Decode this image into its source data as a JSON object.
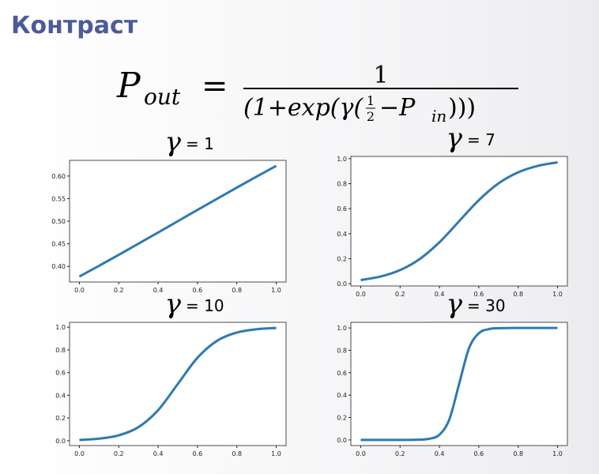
{
  "title": "Контраст",
  "formula": {
    "lhs": "P",
    "lhs_sub": "out",
    "equals": "=",
    "numerator": "1",
    "den_start": "(1+exp(γ(",
    "half_num": "1",
    "half_den": "2",
    "den_minus": "−P",
    "den_sub": "in",
    "den_end": ")))"
  },
  "chart_data": [
    {
      "type": "line",
      "title_symbol": "γ",
      "title": "= 1",
      "color": "#2e7ab2",
      "x": [
        0,
        0.1,
        0.2,
        0.3,
        0.4,
        0.5,
        0.6,
        0.7,
        0.8,
        0.9,
        1
      ],
      "values": [
        0.3775,
        0.4013,
        0.4256,
        0.4502,
        0.475,
        0.5,
        0.525,
        0.5498,
        0.5744,
        0.5987,
        0.6225
      ],
      "xlim": [
        -0.05,
        1.05
      ],
      "ylim": [
        0.3653,
        0.6347
      ],
      "xticks": [
        {
          "value": 0,
          "label": "0.0"
        },
        0.2,
        0.4,
        0.6,
        0.8,
        {
          "value": 1,
          "label": "1.0"
        }
      ],
      "yticks": [
        {
          "value": 0.4,
          "label": "0.40"
        },
        0.45,
        {
          "value": 0.5,
          "label": "0.50"
        },
        0.55,
        {
          "value": 0.6,
          "label": "0.60"
        }
      ]
    },
    {
      "type": "line",
      "title_symbol": "γ",
      "title": "= 7",
      "color": "#2e7ab2",
      "x": [
        0,
        0.1,
        0.2,
        0.3,
        0.4,
        0.5,
        0.6,
        0.7,
        0.8,
        0.9,
        1
      ],
      "values": [
        0.0293,
        0.0573,
        0.1091,
        0.1978,
        0.3318,
        0.5,
        0.6682,
        0.8022,
        0.8909,
        0.9427,
        0.9707
      ],
      "xlim": [
        -0.05,
        1.05
      ],
      "ylim": [
        -0.018,
        1.018
      ],
      "xticks": [
        {
          "value": 0,
          "label": "0.0"
        },
        0.2,
        0.4,
        0.6,
        0.8,
        {
          "value": 1,
          "label": "1.0"
        }
      ],
      "yticks": [
        {
          "value": 0,
          "label": "0.0"
        },
        0.2,
        0.4,
        0.6,
        0.8,
        {
          "value": 1,
          "label": "1.0"
        }
      ]
    },
    {
      "type": "line",
      "title_symbol": "γ",
      "title": "= 10",
      "color": "#2e7ab2",
      "x": [
        0,
        0.1,
        0.2,
        0.3,
        0.4,
        0.5,
        0.6,
        0.7,
        0.8,
        0.9,
        1
      ],
      "values": [
        0.0067,
        0.018,
        0.0474,
        0.1192,
        0.2689,
        0.5,
        0.7311,
        0.8808,
        0.9526,
        0.982,
        0.9933
      ],
      "xlim": [
        -0.05,
        1.05
      ],
      "ylim": [
        -0.043,
        1.043
      ],
      "xticks": [
        {
          "value": 0,
          "label": "0.0"
        },
        0.2,
        0.4,
        0.6,
        0.8,
        {
          "value": 1,
          "label": "1.0"
        }
      ],
      "yticks": [
        {
          "value": 0,
          "label": "0.0"
        },
        0.2,
        0.4,
        0.6,
        0.8,
        {
          "value": 1,
          "label": "1.0"
        }
      ]
    },
    {
      "type": "line",
      "title_symbol": "γ",
      "title": "= 30",
      "color": "#2e7ab2",
      "x": [
        0,
        0.1,
        0.2,
        0.3,
        0.35,
        0.4,
        0.45,
        0.5,
        0.55,
        0.6,
        0.65,
        0.7,
        0.8,
        0.9,
        1
      ],
      "values": [
        0,
        0,
        0.0001,
        0.0025,
        0.011,
        0.0474,
        0.1824,
        0.5,
        0.8176,
        0.9526,
        0.989,
        0.9975,
        0.9999,
        1,
        1
      ],
      "xlim": [
        -0.05,
        1.05
      ],
      "ylim": [
        -0.05,
        1.05
      ],
      "xticks": [
        {
          "value": 0,
          "label": "0.0"
        },
        0.2,
        0.4,
        0.6,
        0.8,
        {
          "value": 1,
          "label": "1.0"
        }
      ],
      "yticks": [
        {
          "value": 0,
          "label": "0.0"
        },
        0.2,
        0.4,
        0.6,
        0.8,
        {
          "value": 1,
          "label": "1.0"
        }
      ]
    }
  ]
}
